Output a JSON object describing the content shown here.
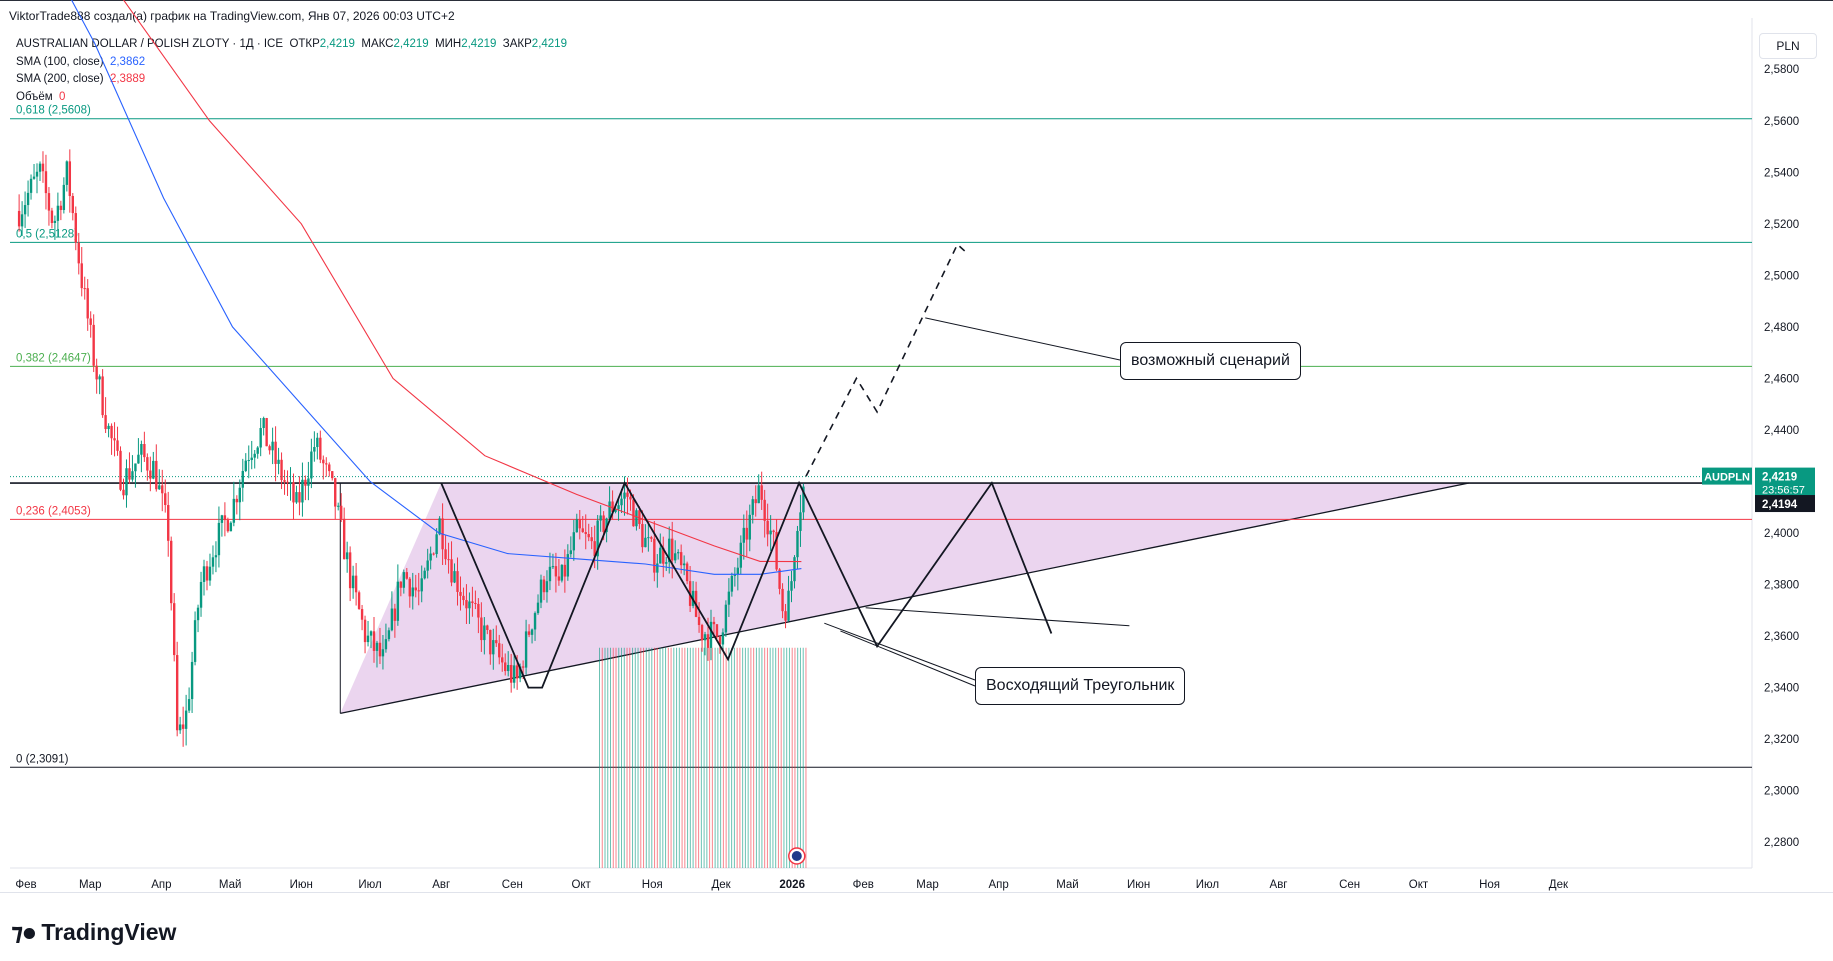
{
  "header": {
    "attribution": "ViktorTrade888 создал(а) график на TradingView.com, Янв 07, 2026 00:03 UTC+2"
  },
  "legend": {
    "instrument": "AUSTRALIAN DOLLAR / POLISH ZLOTY · 1Д · ICE",
    "open_label": "ОТКР",
    "open": "2,4219",
    "high_label": "МАКС",
    "high": "2,4219",
    "low_label": "МИН",
    "low": "2,4219",
    "close_label": "ЗАКР",
    "close": "2,4219",
    "sma100_label": "SMA (100, close)",
    "sma100": "2,3862",
    "sma200_label": "SMA (200, close)",
    "sma200": "2,3889",
    "volume_label": "Объём",
    "volume": "0"
  },
  "currency": "PLN",
  "annotations": {
    "scenario": "возможный сценарий",
    "triangle": "Восходящий Треугольник"
  },
  "price_tags": {
    "symbol": "AUDPLN",
    "last": "2,4219",
    "countdown": "23:56:57",
    "line": "2,4194"
  },
  "brand": "TradingView",
  "colors": {
    "up": "#089981",
    "down": "#f23645",
    "sma100": "#2962ff",
    "sma200": "#f23645",
    "triangle_fill": "#e1bee7",
    "fib_green": "#089981",
    "fib_red": "#f23645"
  },
  "chart_data": {
    "type": "candlestick",
    "y_axis_side": "right",
    "ylim": [
      2.27,
      2.596
    ],
    "yticks": [
      "2,5800",
      "2,5600",
      "2,5400",
      "2,5200",
      "2,5000",
      "2,4800",
      "2,4600",
      "2,4400",
      "2,4000",
      "2,3800",
      "2,3600",
      "2,3400",
      "2,3200",
      "2,3000",
      "2,2800"
    ],
    "x_ticks": [
      {
        "label": "Фев",
        "d": 0
      },
      {
        "label": "Мар",
        "d": 28
      },
      {
        "label": "Апр",
        "d": 59
      },
      {
        "label": "Май",
        "d": 89
      },
      {
        "label": "Июн",
        "d": 120
      },
      {
        "label": "Июл",
        "d": 150
      },
      {
        "label": "Авг",
        "d": 181
      },
      {
        "label": "Сен",
        "d": 212
      },
      {
        "label": "Окт",
        "d": 242
      },
      {
        "label": "Ноя",
        "d": 273
      },
      {
        "label": "Дек",
        "d": 303
      },
      {
        "label": "2026",
        "d": 334
      },
      {
        "label": "Фев",
        "d": 365
      },
      {
        "label": "Мар",
        "d": 393
      },
      {
        "label": "Апр",
        "d": 424
      },
      {
        "label": "Май",
        "d": 454
      },
      {
        "label": "Июн",
        "d": 485
      },
      {
        "label": "Июл",
        "d": 515
      },
      {
        "label": "Авг",
        "d": 546
      },
      {
        "label": "Сен",
        "d": 577
      },
      {
        "label": "Окт",
        "d": 607
      },
      {
        "label": "Ноя",
        "d": 638
      },
      {
        "label": "Дек",
        "d": 668
      }
    ],
    "fib_levels": [
      {
        "label": "0,618 (2,5608)",
        "value": 2.5608,
        "color": "#089981"
      },
      {
        "label": "0,5 (2,5128)",
        "value": 2.5128,
        "color": "#089981"
      },
      {
        "label": "0,382 (2,4647)",
        "value": 2.4647,
        "color": "#4caf50"
      },
      {
        "label": "0,236 (2,4053)",
        "value": 2.4053,
        "color": "#f23645"
      },
      {
        "label": "0 (2,3091)",
        "value": 2.3091,
        "color": "#131722"
      }
    ],
    "resistance": 2.4194,
    "triangle": [
      [
        137,
        2.33
      ],
      [
        629,
        2.4194
      ],
      [
        181,
        2.4194
      ]
    ],
    "zigzag": [
      [
        181,
        2.4194
      ],
      [
        219,
        2.34
      ],
      [
        225,
        2.34
      ],
      [
        261,
        2.4194
      ],
      [
        306,
        2.351
      ],
      [
        337,
        2.4194
      ],
      [
        371,
        2.356
      ],
      [
        421,
        2.4194
      ],
      [
        447,
        2.361
      ]
    ],
    "lower_line_2": [
      [
        366,
        2.371
      ],
      [
        481,
        2.364
      ]
    ],
    "projection": [
      [
        340,
        2.422
      ],
      [
        362,
        2.46
      ],
      [
        371,
        2.447
      ],
      [
        406,
        2.512
      ],
      [
        411,
        2.508
      ]
    ],
    "sma100_path": [
      [
        0,
        2.64
      ],
      [
        30,
        2.59
      ],
      [
        60,
        2.53
      ],
      [
        90,
        2.48
      ],
      [
        120,
        2.45
      ],
      [
        150,
        2.42
      ],
      [
        180,
        2.4
      ],
      [
        210,
        2.392
      ],
      [
        240,
        2.39
      ],
      [
        270,
        2.388
      ],
      [
        300,
        2.384
      ],
      [
        320,
        2.384
      ],
      [
        338,
        2.3862
      ]
    ],
    "sma200_path": [
      [
        0,
        2.65
      ],
      [
        40,
        2.61
      ],
      [
        80,
        2.56
      ],
      [
        120,
        2.52
      ],
      [
        160,
        2.46
      ],
      [
        200,
        2.43
      ],
      [
        240,
        2.415
      ],
      [
        270,
        2.405
      ],
      [
        300,
        2.395
      ],
      [
        320,
        2.389
      ],
      [
        338,
        2.3889
      ]
    ],
    "volume_note": "volume bars Oct–Jan"
  }
}
